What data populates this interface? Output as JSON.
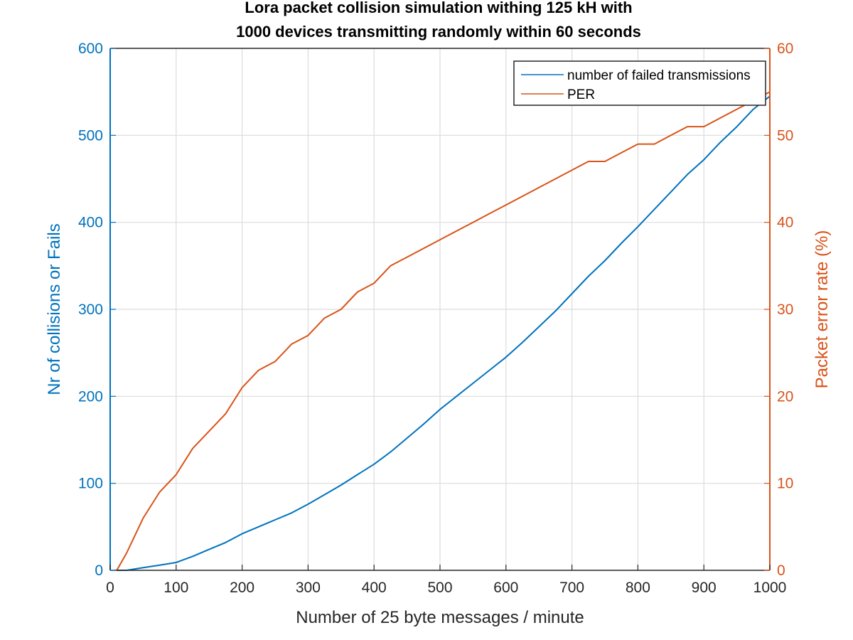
{
  "chart_data": {
    "type": "line",
    "title": "Lora packet collision simulation withing 125 kH with",
    "subtitle": "1000 devices transmitting randomly within 60 seconds",
    "xlabel": "Number of 25 byte  messages / minute",
    "ylabel": "Nr of collisions or Fails",
    "y2label": "Packet error rate (%)",
    "xlim": [
      0,
      1000
    ],
    "ylim": [
      0,
      600
    ],
    "y2lim": [
      0,
      60
    ],
    "xticks": [
      "0",
      "100",
      "200",
      "300",
      "400",
      "500",
      "600",
      "700",
      "800",
      "900",
      "1000"
    ],
    "yticks": [
      "0",
      "100",
      "200",
      "300",
      "400",
      "500",
      "600"
    ],
    "y2ticks": [
      "0",
      "10",
      "20",
      "30",
      "40",
      "50",
      "60"
    ],
    "grid": true,
    "legend_position": "top-right",
    "colors": {
      "left_axis": "#0072BD",
      "right_axis": "#D95319"
    },
    "series": [
      {
        "name": "number of failed transmissions",
        "axis": "left",
        "color": "#0072BD",
        "x": [
          10,
          25,
          50,
          75,
          100,
          125,
          150,
          175,
          200,
          225,
          250,
          275,
          300,
          325,
          350,
          375,
          400,
          425,
          450,
          475,
          500,
          525,
          550,
          575,
          600,
          625,
          650,
          675,
          700,
          725,
          750,
          775,
          800,
          825,
          850,
          875,
          900,
          925,
          950,
          975,
          1000
        ],
        "values": [
          0,
          0,
          3,
          6,
          9,
          16,
          24,
          32,
          42,
          50,
          58,
          66,
          76,
          87,
          98,
          110,
          122,
          136,
          152,
          168,
          185,
          200,
          215,
          230,
          245,
          262,
          280,
          298,
          318,
          338,
          356,
          376,
          395,
          415,
          435,
          455,
          472,
          492,
          510,
          530,
          545
        ]
      },
      {
        "name": "PER",
        "axis": "right",
        "color": "#D95319",
        "x": [
          10,
          25,
          50,
          75,
          100,
          125,
          150,
          175,
          200,
          225,
          250,
          275,
          300,
          325,
          350,
          375,
          400,
          425,
          450,
          475,
          500,
          525,
          550,
          575,
          600,
          625,
          650,
          675,
          700,
          725,
          750,
          775,
          800,
          825,
          850,
          875,
          900,
          925,
          950,
          975,
          1000
        ],
        "values": [
          0,
          2,
          6,
          9,
          11,
          14,
          16,
          18,
          21,
          23,
          24,
          26,
          27,
          29,
          30,
          32,
          33,
          35,
          36,
          37,
          38,
          39,
          40,
          41,
          42,
          43,
          44,
          45,
          46,
          47,
          47,
          48,
          49,
          49,
          50,
          51,
          51,
          52,
          53,
          54,
          55
        ]
      }
    ]
  }
}
